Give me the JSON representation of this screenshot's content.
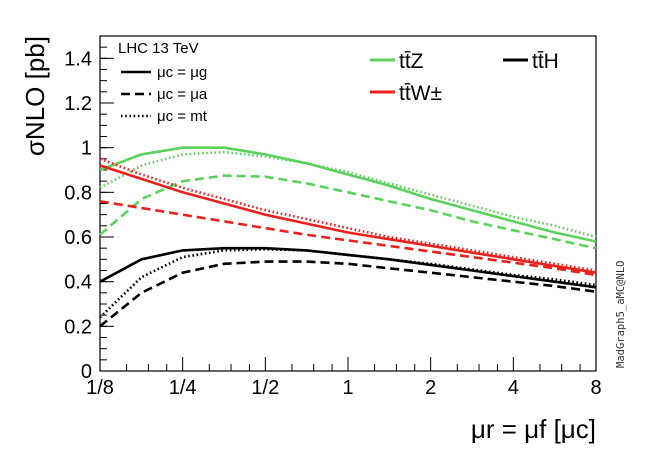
{
  "chart_data": {
    "type": "line",
    "title": "",
    "xlabel": "μr = μf [μc]",
    "ylabel": "σNLO [pb]",
    "x_scale": "log2",
    "xlim": [
      0.125,
      8
    ],
    "ylim": [
      0,
      1.5
    ],
    "x_ticks": [
      0.125,
      0.25,
      0.5,
      1,
      2,
      4,
      8
    ],
    "x_tick_labels": [
      "1/8",
      "1/4",
      "1/2",
      "1",
      "2",
      "4",
      "8"
    ],
    "y_ticks": [
      0,
      0.2,
      0.4,
      0.6,
      0.8,
      1,
      1.2,
      1.4
    ],
    "y_tick_labels": [
      "0",
      "0.2",
      "0.4",
      "0.6",
      "0.8",
      "1",
      "1.2",
      "1.4"
    ],
    "grid": false,
    "x": [
      0.125,
      0.177,
      0.25,
      0.354,
      0.5,
      0.707,
      1,
      1.41,
      2,
      2.83,
      4,
      5.66,
      8
    ],
    "series": [
      {
        "name": "ttZ, μc = μg",
        "process": "ttZ",
        "scale": "μg",
        "color": "#5cd25c",
        "style": "solid",
        "values": [
          0.9,
          0.97,
          1.0,
          1.0,
          0.97,
          0.93,
          0.88,
          0.83,
          0.77,
          0.72,
          0.67,
          0.62,
          0.58
        ]
      },
      {
        "name": "ttZ, μc = μa",
        "process": "ttZ",
        "scale": "μa",
        "color": "#5cd25c",
        "style": "dashed",
        "values": [
          0.61,
          0.77,
          0.85,
          0.875,
          0.87,
          0.84,
          0.8,
          0.76,
          0.72,
          0.67,
          0.63,
          0.59,
          0.55
        ]
      },
      {
        "name": "ttZ, μc = mt",
        "process": "ttZ",
        "scale": "mt",
        "color": "#5cd25c",
        "style": "dotted",
        "values": [
          0.82,
          0.92,
          0.97,
          0.98,
          0.96,
          0.93,
          0.89,
          0.84,
          0.79,
          0.74,
          0.69,
          0.65,
          0.6
        ]
      },
      {
        "name": "ttW±, μc = μg",
        "process": "ttW",
        "scale": "μg",
        "color": "#e8211c",
        "style": "solid",
        "values": [
          0.92,
          0.86,
          0.8,
          0.75,
          0.7,
          0.66,
          0.62,
          0.59,
          0.56,
          0.53,
          0.5,
          0.47,
          0.44
        ]
      },
      {
        "name": "ttW±, μc = μa",
        "process": "ttW",
        "scale": "μa",
        "color": "#e8211c",
        "style": "dashed",
        "values": [
          0.76,
          0.73,
          0.7,
          0.67,
          0.64,
          0.61,
          0.585,
          0.56,
          0.535,
          0.51,
          0.485,
          0.46,
          0.43
        ]
      },
      {
        "name": "ttW±, μc = mt",
        "process": "ttW",
        "scale": "mt",
        "color": "#e8211c",
        "style": "dotted",
        "values": [
          0.95,
          0.88,
          0.82,
          0.77,
          0.72,
          0.68,
          0.64,
          0.6,
          0.57,
          0.54,
          0.51,
          0.48,
          0.45
        ]
      },
      {
        "name": "ttH, μc = μg",
        "process": "ttH",
        "scale": "μg",
        "color": "#000000",
        "style": "solid",
        "values": [
          0.4,
          0.5,
          0.54,
          0.55,
          0.55,
          0.54,
          0.52,
          0.5,
          0.475,
          0.45,
          0.425,
          0.4,
          0.375
        ]
      },
      {
        "name": "ttH, μc = μa",
        "process": "ttH",
        "scale": "μa",
        "color": "#000000",
        "style": "dashed",
        "values": [
          0.2,
          0.35,
          0.44,
          0.48,
          0.49,
          0.49,
          0.48,
          0.46,
          0.44,
          0.42,
          0.4,
          0.38,
          0.355
        ]
      },
      {
        "name": "ttH, μc = mt",
        "process": "ttH",
        "scale": "mt",
        "color": "#000000",
        "style": "dotted",
        "values": [
          0.24,
          0.42,
          0.51,
          0.54,
          0.545,
          0.54,
          0.52,
          0.5,
          0.48,
          0.455,
          0.43,
          0.41,
          0.385
        ]
      }
    ],
    "legend": {
      "title": "LHC 13 TeV",
      "placement": "top-left",
      "entries": [
        {
          "style": "solid",
          "label": "μc = μg"
        },
        {
          "style": "dashed",
          "label": "μc = μa"
        },
        {
          "style": "dotted",
          "label": "μc = mt"
        }
      ]
    },
    "process_legend": [
      {
        "label": "tt̄Z",
        "color": "#5cd25c"
      },
      {
        "label": "tt̄H",
        "color": "#000000"
      },
      {
        "label": "tt̄W±",
        "color": "#e8211c"
      }
    ],
    "annotation": "MadGraph5_aMC@NLO"
  }
}
